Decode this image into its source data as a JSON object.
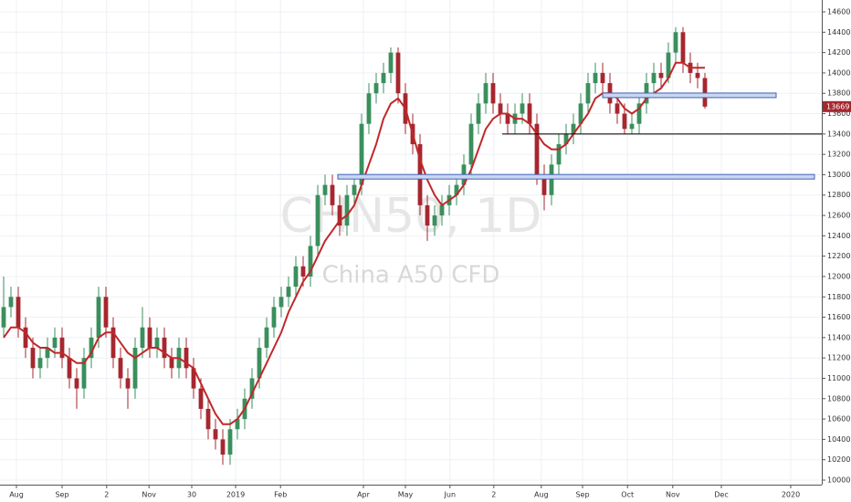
{
  "chart_data": {
    "type": "candlestick",
    "watermark": "CHN50, 1D",
    "subtitle": "China A50 CFD",
    "up_color": "#3a8f5c",
    "down_color": "#a6272f",
    "grid": true,
    "ylim": [
      10000,
      14600
    ],
    "yticks": [
      10000,
      10200,
      10400,
      10600,
      10800,
      11000,
      11200,
      11400,
      11600,
      11800,
      12000,
      12200,
      12400,
      12600,
      12800,
      13000,
      13200,
      13400,
      13600,
      13800,
      14000,
      14200,
      14400,
      14600
    ],
    "xlim": [
      -0.5,
      112
    ],
    "xticks": [
      {
        "value": 1.75,
        "label": "Aug"
      },
      {
        "value": 8,
        "label": "Sep"
      },
      {
        "value": 14.1,
        "label": "2"
      },
      {
        "value": 19.9,
        "label": "Nov"
      },
      {
        "value": 25.75,
        "label": "30"
      },
      {
        "value": 31.75,
        "label": "2019"
      },
      {
        "value": 37.9,
        "label": "Feb"
      },
      {
        "value": 49.25,
        "label": "Apr"
      },
      {
        "value": 55,
        "label": "May"
      },
      {
        "value": 61.1,
        "label": "Jun"
      },
      {
        "value": 67.1,
        "label": "2"
      },
      {
        "value": 73.6,
        "label": "Aug"
      },
      {
        "value": 79.25,
        "label": "Sep"
      },
      {
        "value": 85.4,
        "label": "Oct"
      },
      {
        "value": 91.6,
        "label": "Nov"
      },
      {
        "value": 98.25,
        "label": "Dec"
      },
      {
        "value": 107.75,
        "label": "2020"
      }
    ],
    "open": [
      11500,
      11700,
      11800,
      11500,
      11300,
      11100,
      11200,
      11300,
      11400,
      11200,
      11000,
      10900,
      11200,
      11400,
      11800,
      11500,
      11200,
      11000,
      10900,
      11300,
      11500,
      11300,
      11400,
      11200,
      11100,
      11300,
      11100,
      10900,
      10700,
      10500,
      10400,
      10250,
      10500,
      10600,
      10800,
      11000,
      11300,
      11500,
      11700,
      11800,
      11900,
      12100,
      12000,
      12300,
      12800,
      12900,
      12700,
      12500,
      12800,
      12900,
      13500,
      13800,
      13900,
      14000,
      14200,
      13800,
      13500,
      13300,
      12700,
      12500,
      12600,
      12700,
      12800,
      12900,
      13100,
      13500,
      13700,
      13900,
      13700,
      13600,
      13500,
      13600,
      13700,
      13500,
      13000,
      12800,
      13100,
      13300,
      13400,
      13500,
      13700,
      13900,
      14000,
      13900,
      13700,
      13600,
      13450,
      13500,
      13700,
      13900,
      14000,
      13950,
      14200,
      14400,
      14100,
      14000,
      13950
    ],
    "high": [
      12000,
      11900,
      11900,
      11600,
      11400,
      11300,
      11400,
      11500,
      11500,
      11300,
      11100,
      11300,
      11500,
      11900,
      11900,
      11600,
      11300,
      11100,
      11400,
      11700,
      11600,
      11500,
      11500,
      11300,
      11400,
      11400,
      11200,
      11000,
      10800,
      10600,
      10500,
      10600,
      10700,
      10900,
      11100,
      11400,
      11600,
      11800,
      11900,
      12000,
      12200,
      12200,
      12400,
      12900,
      13000,
      13000,
      12800,
      12900,
      13000,
      13600,
      13900,
      14000,
      14100,
      14250,
      14250,
      13900,
      13600,
      13400,
      12800,
      12700,
      12800,
      12900,
      13000,
      13200,
      13600,
      13800,
      14000,
      14000,
      13800,
      13700,
      13700,
      13800,
      13800,
      13600,
      13100,
      13200,
      13400,
      13500,
      13600,
      13800,
      14000,
      14100,
      14100,
      14000,
      13800,
      13700,
      13600,
      13800,
      14000,
      14100,
      14100,
      14300,
      14450,
      14450,
      14200,
      14100,
      14000
    ],
    "low": [
      11400,
      11600,
      11400,
      11200,
      11000,
      11000,
      11100,
      11200,
      11100,
      10900,
      10700,
      10800,
      11100,
      11300,
      11400,
      11100,
      10900,
      10700,
      10800,
      11200,
      11200,
      11200,
      11100,
      11000,
      11000,
      11000,
      10800,
      10600,
      10400,
      10300,
      10150,
      10150,
      10400,
      10500,
      10700,
      10900,
      11200,
      11400,
      11600,
      11700,
      11800,
      11900,
      11900,
      12200,
      12700,
      12600,
      12400,
      12400,
      12700,
      12800,
      13400,
      13700,
      13800,
      13900,
      13700,
      13400,
      13200,
      12600,
      12350,
      12400,
      12500,
      12600,
      12700,
      12800,
      13000,
      13400,
      13600,
      13600,
      13500,
      13400,
      13400,
      13500,
      13400,
      12900,
      12650,
      12700,
      13000,
      13200,
      13300,
      13400,
      13600,
      13800,
      13800,
      13600,
      13500,
      13400,
      13400,
      13400,
      13600,
      13800,
      13850,
      13900,
      14100,
      14000,
      13900,
      13850,
      13650
    ],
    "close": [
      11700,
      11800,
      11500,
      11300,
      11100,
      11200,
      11300,
      11400,
      11200,
      11000,
      10900,
      11200,
      11400,
      11800,
      11500,
      11200,
      11000,
      10900,
      11300,
      11500,
      11300,
      11400,
      11200,
      11100,
      11300,
      11100,
      10900,
      10700,
      10500,
      10400,
      10250,
      10500,
      10600,
      10800,
      11000,
      11300,
      11500,
      11700,
      11800,
      11900,
      12100,
      12000,
      12300,
      12800,
      12900,
      12700,
      12500,
      12800,
      12900,
      13500,
      13800,
      13900,
      14000,
      14200,
      13800,
      13500,
      13300,
      12700,
      12500,
      12600,
      12700,
      12800,
      12900,
      13100,
      13500,
      13700,
      13900,
      13700,
      13600,
      13500,
      13600,
      13700,
      13500,
      13000,
      12800,
      13100,
      13300,
      13400,
      13500,
      13700,
      13900,
      14000,
      13900,
      13700,
      13600,
      13450,
      13500,
      13700,
      13900,
      14000,
      13950,
      14200,
      14400,
      14100,
      14000,
      13950,
      13669
    ],
    "ma": {
      "color": "#c0282a",
      "values": [
        11400,
        11500,
        11500,
        11450,
        11350,
        11300,
        11300,
        11250,
        11250,
        11200,
        11150,
        11150,
        11250,
        11400,
        11450,
        11450,
        11350,
        11250,
        11200,
        11250,
        11300,
        11300,
        11250,
        11200,
        11200,
        11150,
        11100,
        10950,
        10800,
        10650,
        10550,
        10550,
        10600,
        10700,
        10850,
        11000,
        11150,
        11300,
        11450,
        11650,
        11800,
        11950,
        12050,
        12200,
        12350,
        12450,
        12550,
        12600,
        12700,
        12900,
        13100,
        13300,
        13550,
        13700,
        13750,
        13650,
        13400,
        13150,
        12950,
        12800,
        12700,
        12750,
        12800,
        12900,
        13050,
        13250,
        13450,
        13550,
        13600,
        13600,
        13550,
        13550,
        13500,
        13400,
        13300,
        13250,
        13250,
        13300,
        13400,
        13500,
        13600,
        13750,
        13800,
        13800,
        13750,
        13650,
        13600,
        13650,
        13750,
        13800,
        13850,
        13950,
        14100,
        14100,
        14050,
        14050,
        14050
      ]
    },
    "levels": [
      {
        "value": 13780,
        "from": 82,
        "to": 105.75,
        "color": "#3f63b5",
        "style": "band"
      },
      {
        "value": 13400,
        "from": 68.25,
        "to": 112,
        "color": "#111111",
        "style": "line"
      },
      {
        "value": 12980,
        "from": 45.75,
        "to": 111,
        "color": "#3f63b5",
        "style": "band"
      }
    ]
  }
}
